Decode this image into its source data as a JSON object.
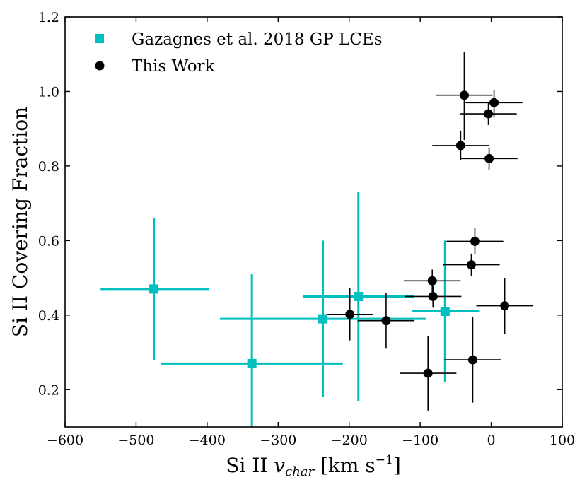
{
  "chart_data": {
    "type": "scatter",
    "title": "",
    "xlabel": "Si II v_char [km s^-1]",
    "xlabel_parts": {
      "base": "Si II ",
      "var": "v",
      "sub": "char",
      "unit_open": " [km s",
      "exp": "−1",
      "unit_close": "]"
    },
    "ylabel": "Si II Covering Fraction",
    "xlim": [
      -600,
      100
    ],
    "ylim": [
      0.1,
      1.2
    ],
    "xticks": [
      -600,
      -500,
      -400,
      -300,
      -200,
      -100,
      0,
      100
    ],
    "xtick_labels": [
      "−600",
      "−500",
      "−400",
      "−300",
      "−200",
      "−100",
      "0",
      "100"
    ],
    "yticks": [
      0.2,
      0.4,
      0.6,
      0.8,
      1.0,
      1.2
    ],
    "ytick_labels": [
      "0.2",
      "0.4",
      "0.6",
      "0.8",
      "1.0",
      "1.2"
    ],
    "legend_position": "top-left",
    "series": [
      {
        "name": "Gazagnes et al. 2018 GP LCEs",
        "color": "#00bfbf",
        "marker": "square",
        "points": [
          {
            "x": -475,
            "y": 0.47,
            "xerr": [
              75,
              78
            ],
            "yerr": [
              0.19,
              0.19
            ]
          },
          {
            "x": -337,
            "y": 0.27,
            "xerr": [
              128,
              128
            ],
            "yerr": [
              0.24,
              0.24
            ]
          },
          {
            "x": -237,
            "y": 0.39,
            "xerr": [
              145,
              145
            ],
            "yerr": [
              0.21,
              0.21
            ]
          },
          {
            "x": -187,
            "y": 0.45,
            "xerr": [
              78,
              78
            ],
            "yerr": [
              0.28,
              0.28
            ]
          },
          {
            "x": -65,
            "y": 0.41,
            "xerr": [
              46,
              48
            ],
            "yerr": [
              0.19,
              0.19
            ]
          }
        ]
      },
      {
        "name": "This Work",
        "color": "#000000",
        "marker": "circle",
        "points": [
          {
            "x": -38,
            "y": 0.99,
            "xerr": [
              40,
              40
            ],
            "yerr": [
              0.12,
              0.115
            ]
          },
          {
            "x": 4,
            "y": 0.97,
            "xerr": [
              40,
              40
            ],
            "yerr": [
              0.04,
              0.035
            ]
          },
          {
            "x": -4,
            "y": 0.94,
            "xerr": [
              40,
              40
            ],
            "yerr": [
              0.03,
              0.03
            ]
          },
          {
            "x": -43,
            "y": 0.855,
            "xerr": [
              40,
              40
            ],
            "yerr": [
              0.04,
              0.04
            ]
          },
          {
            "x": -3,
            "y": 0.82,
            "xerr": [
              40,
              40
            ],
            "yerr": [
              0.03,
              0.03
            ]
          },
          {
            "x": -23,
            "y": 0.598,
            "xerr": [
              40,
              40
            ],
            "yerr": [
              0.035,
              0.035
            ]
          },
          {
            "x": -28,
            "y": 0.535,
            "xerr": [
              40,
              40
            ],
            "yerr": [
              0.03,
              0.03
            ]
          },
          {
            "x": -83,
            "y": 0.492,
            "xerr": [
              40,
              40
            ],
            "yerr": [
              0.03,
              0.03
            ]
          },
          {
            "x": -82,
            "y": 0.45,
            "xerr": [
              40,
              40
            ],
            "yerr": [
              0.03,
              0.03
            ]
          },
          {
            "x": 19,
            "y": 0.425,
            "xerr": [
              40,
              40
            ],
            "yerr": [
              0.075,
              0.075
            ]
          },
          {
            "x": -199,
            "y": 0.402,
            "xerr": [
              32,
              32
            ],
            "yerr": [
              0.07,
              0.07
            ]
          },
          {
            "x": -148,
            "y": 0.385,
            "xerr": [
              40,
              40
            ],
            "yerr": [
              0.075,
              0.075
            ]
          },
          {
            "x": -26,
            "y": 0.28,
            "xerr": [
              40,
              40
            ],
            "yerr": [
              0.115,
              0.115
            ]
          },
          {
            "x": -89,
            "y": 0.244,
            "xerr": [
              40,
              40
            ],
            "yerr": [
              0.1,
              0.1
            ]
          }
        ]
      }
    ]
  }
}
